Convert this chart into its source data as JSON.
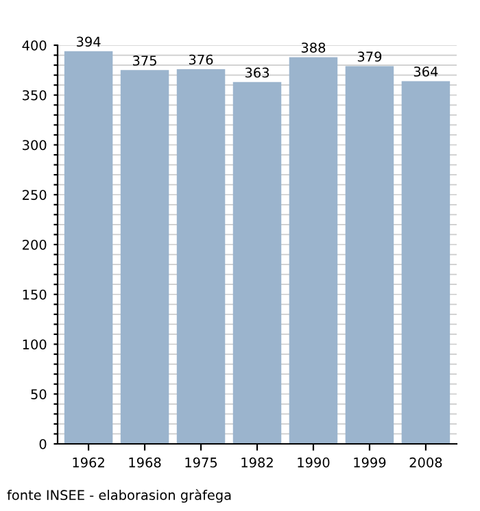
{
  "chart_data": {
    "type": "bar",
    "categories": [
      "1962",
      "1968",
      "1975",
      "1982",
      "1990",
      "1999",
      "2008"
    ],
    "values": [
      394,
      375,
      376,
      363,
      388,
      379,
      364
    ],
    "color": "#9bb4cd",
    "data_labels": true,
    "ylim": [
      0,
      400
    ],
    "yticks": [
      0,
      {
        "value": 10,
        "label": null
      },
      {
        "value": 20,
        "label": null
      },
      {
        "value": 30,
        "label": null
      },
      {
        "value": 40,
        "label": null
      },
      50,
      {
        "value": 60,
        "label": null
      },
      {
        "value": 70,
        "label": null
      },
      {
        "value": 80,
        "label": null
      },
      {
        "value": 90,
        "label": null
      },
      100,
      {
        "value": 110,
        "label": null
      },
      {
        "value": 120,
        "label": null
      },
      {
        "value": 130,
        "label": null
      },
      {
        "value": 140,
        "label": null
      },
      150,
      {
        "value": 160,
        "label": null
      },
      {
        "value": 170,
        "label": null
      },
      {
        "value": 180,
        "label": null
      },
      {
        "value": 190,
        "label": null
      },
      200,
      {
        "value": 210,
        "label": null
      },
      {
        "value": 220,
        "label": null
      },
      {
        "value": 230,
        "label": null
      },
      {
        "value": 240,
        "label": null
      },
      250,
      {
        "value": 260,
        "label": null
      },
      {
        "value": 270,
        "label": null
      },
      {
        "value": 280,
        "label": null
      },
      {
        "value": 290,
        "label": null
      },
      300,
      {
        "value": 310,
        "label": null
      },
      {
        "value": 320,
        "label": null
      },
      {
        "value": 330,
        "label": null
      },
      {
        "value": 340,
        "label": null
      },
      350,
      {
        "value": 360,
        "label": null
      },
      {
        "value": 370,
        "label": null
      },
      {
        "value": 380,
        "label": null
      },
      {
        "value": 390,
        "label": null
      },
      400
    ],
    "grid": "y",
    "annotations": [
      "fonte INSEE - elaborasion gràfega"
    ]
  }
}
